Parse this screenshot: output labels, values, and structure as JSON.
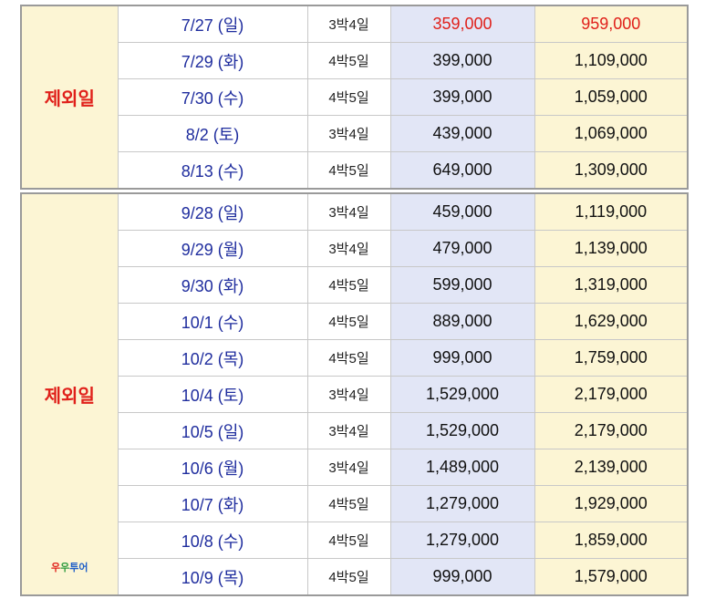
{
  "colors": {
    "label_red": "#e0201a",
    "date_blue": "#1f2d9e",
    "price1_bg": "#e2e6f6",
    "price2_bg": "#fcf5d4"
  },
  "section1": {
    "label": "제외일",
    "rows": [
      {
        "date": "7/27 (일)",
        "duration": "3박4일",
        "price1": "359,000",
        "price2": "959,000",
        "highlight": true
      },
      {
        "date": "7/29 (화)",
        "duration": "4박5일",
        "price1": "399,000",
        "price2": "1,109,000"
      },
      {
        "date": "7/30 (수)",
        "duration": "4박5일",
        "price1": "399,000",
        "price2": "1,059,000"
      },
      {
        "date": "8/2 (토)",
        "duration": "3박4일",
        "price1": "439,000",
        "price2": "1,069,000"
      },
      {
        "date": "8/13 (수)",
        "duration": "4박5일",
        "price1": "649,000",
        "price2": "1,309,000"
      }
    ]
  },
  "section2": {
    "label": "제외일",
    "logo": {
      "p1": "우",
      "p2": "우",
      "p3": "투어"
    },
    "rows": [
      {
        "date": "9/28 (일)",
        "duration": "3박4일",
        "price1": "459,000",
        "price2": "1,119,000"
      },
      {
        "date": "9/29 (월)",
        "duration": "3박4일",
        "price1": "479,000",
        "price2": "1,139,000"
      },
      {
        "date": "9/30 (화)",
        "duration": "4박5일",
        "price1": "599,000",
        "price2": "1,319,000"
      },
      {
        "date": "10/1 (수)",
        "duration": "4박5일",
        "price1": "889,000",
        "price2": "1,629,000"
      },
      {
        "date": "10/2 (목)",
        "duration": "4박5일",
        "price1": "999,000",
        "price2": "1,759,000"
      },
      {
        "date": "10/4 (토)",
        "duration": "3박4일",
        "price1": "1,529,000",
        "price2": "2,179,000"
      },
      {
        "date": "10/5 (일)",
        "duration": "3박4일",
        "price1": "1,529,000",
        "price2": "2,179,000"
      },
      {
        "date": "10/6 (월)",
        "duration": "3박4일",
        "price1": "1,489,000",
        "price2": "2,139,000"
      },
      {
        "date": "10/7 (화)",
        "duration": "4박5일",
        "price1": "1,279,000",
        "price2": "1,929,000"
      },
      {
        "date": "10/8 (수)",
        "duration": "4박5일",
        "price1": "1,279,000",
        "price2": "1,859,000"
      },
      {
        "date": "10/9 (목)",
        "duration": "4박5일",
        "price1": "999,000",
        "price2": "1,579,000"
      }
    ]
  }
}
